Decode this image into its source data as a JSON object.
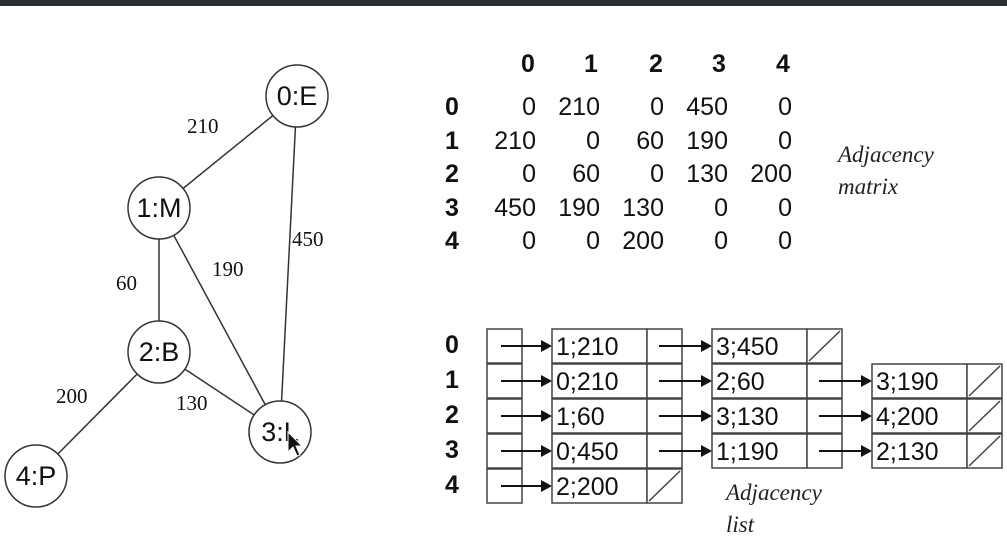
{
  "graph": {
    "nodes": [
      {
        "label": "0:E"
      },
      {
        "label": "1:M"
      },
      {
        "label": "2:B"
      },
      {
        "label": "3:L"
      },
      {
        "label": "4:P"
      }
    ],
    "edges": [
      {
        "from": 0,
        "to": 1,
        "weight": "210"
      },
      {
        "from": 0,
        "to": 3,
        "weight": "450"
      },
      {
        "from": 1,
        "to": 2,
        "weight": "60"
      },
      {
        "from": 1,
        "to": 3,
        "weight": "190"
      },
      {
        "from": 2,
        "to": 3,
        "weight": "130"
      },
      {
        "from": 2,
        "to": 4,
        "weight": "200"
      }
    ]
  },
  "matrix": {
    "caption_line1": "Adjacency",
    "caption_line2": "matrix",
    "col_headers": [
      "0",
      "1",
      "2",
      "3",
      "4"
    ],
    "row_headers": [
      "0",
      "1",
      "2",
      "3",
      "4"
    ],
    "rows": [
      [
        "0",
        "210",
        "0",
        "450",
        "0"
      ],
      [
        "210",
        "0",
        "60",
        "190",
        "0"
      ],
      [
        "0",
        "60",
        "0",
        "130",
        "200"
      ],
      [
        "450",
        "190",
        "130",
        "0",
        "0"
      ],
      [
        "0",
        "0",
        "200",
        "0",
        "0"
      ]
    ]
  },
  "adjlist": {
    "caption_line1": "Adjacency",
    "caption_line2": "list",
    "row_headers": [
      "0",
      "1",
      "2",
      "3",
      "4"
    ],
    "rows": [
      [
        "1;210",
        "3;450"
      ],
      [
        "0;210",
        "2;60",
        "3;190"
      ],
      [
        "1;60",
        "3;130",
        "4;200"
      ],
      [
        "0;450",
        "1;190",
        "2;130"
      ],
      [
        "2;200"
      ]
    ]
  }
}
